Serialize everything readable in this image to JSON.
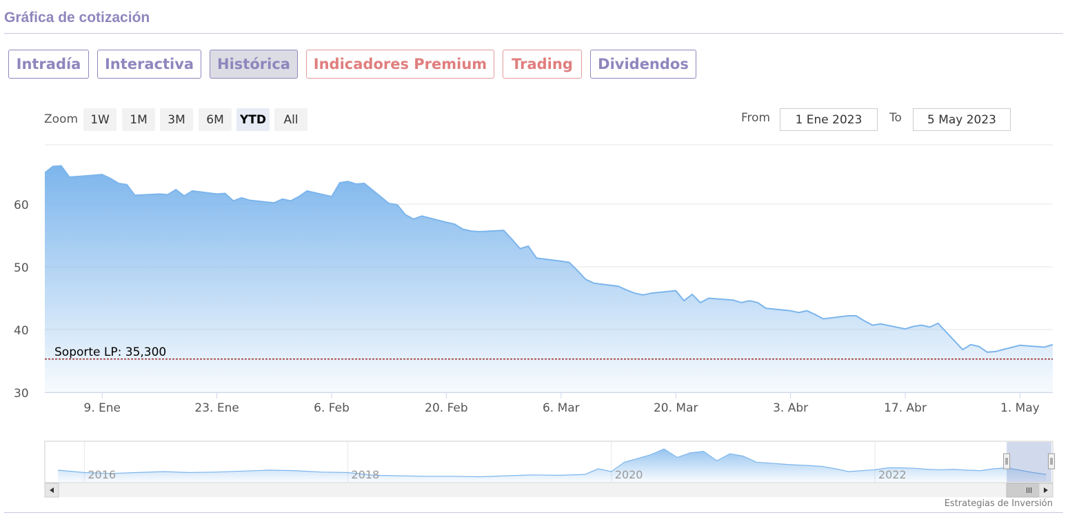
{
  "header": {
    "title": "Gráfica de cotización"
  },
  "tabs": [
    {
      "label": "Intradía",
      "style": "normal",
      "active": false
    },
    {
      "label": "Interactiva",
      "style": "normal",
      "active": false
    },
    {
      "label": "Histórica",
      "style": "normal",
      "active": true
    },
    {
      "label": "Indicadores Premium",
      "style": "premium",
      "active": false
    },
    {
      "label": "Trading",
      "style": "premium",
      "active": false
    },
    {
      "label": "Dividendos",
      "style": "normal",
      "active": false
    }
  ],
  "zoom": {
    "label": "Zoom",
    "buttons": [
      "1W",
      "1M",
      "3M",
      "6M",
      "YTD",
      "All"
    ],
    "active": "YTD"
  },
  "range": {
    "from_label": "From",
    "from_value": "1 Ene 2023",
    "to_label": "To",
    "to_value": "5 May 2023"
  },
  "colors": {
    "accent": "#8f86bd",
    "premium": "#e07e7e",
    "line": "#7cb5ec",
    "support_line": "#8b0000"
  },
  "chart_data": {
    "type": "area",
    "y_ticks": [
      "60",
      "50",
      "40",
      "30"
    ],
    "ylim": [
      30,
      70
    ],
    "x_ticks": [
      "9. Ene",
      "23. Ene",
      "6. Feb",
      "20. Feb",
      "6. Mar",
      "20. Mar",
      "3. Abr",
      "17. Abr",
      "1. May"
    ],
    "x_tick_dates": [
      "2023-01-09",
      "2023-01-23",
      "2023-02-06",
      "2023-02-20",
      "2023-03-06",
      "2023-03-20",
      "2023-04-03",
      "2023-04-17",
      "2023-05-01"
    ],
    "x_range": [
      "2023-01-02",
      "2023-05-05"
    ],
    "grid": true,
    "series": [
      {
        "x": [
          "2023-01-02",
          "2023-01-03",
          "2023-01-04",
          "2023-01-05",
          "2023-01-06",
          "2023-01-09",
          "2023-01-10",
          "2023-01-11",
          "2023-01-12",
          "2023-01-13",
          "2023-01-16",
          "2023-01-17",
          "2023-01-18",
          "2023-01-19",
          "2023-01-20",
          "2023-01-23",
          "2023-01-24",
          "2023-01-25",
          "2023-01-26",
          "2023-01-27",
          "2023-01-30",
          "2023-01-31",
          "2023-02-01",
          "2023-02-02",
          "2023-02-03",
          "2023-02-06",
          "2023-02-07",
          "2023-02-08",
          "2023-02-09",
          "2023-02-10",
          "2023-02-13",
          "2023-02-14",
          "2023-02-15",
          "2023-02-16",
          "2023-02-17",
          "2023-02-20",
          "2023-02-21",
          "2023-02-22",
          "2023-02-23",
          "2023-02-24",
          "2023-02-27",
          "2023-02-28",
          "2023-03-01",
          "2023-03-02",
          "2023-03-03",
          "2023-03-06",
          "2023-03-07",
          "2023-03-08",
          "2023-03-09",
          "2023-03-10",
          "2023-03-13",
          "2023-03-14",
          "2023-03-15",
          "2023-03-16",
          "2023-03-17",
          "2023-03-20",
          "2023-03-21",
          "2023-03-22",
          "2023-03-23",
          "2023-03-24",
          "2023-03-27",
          "2023-03-28",
          "2023-03-29",
          "2023-03-30",
          "2023-03-31",
          "2023-04-03",
          "2023-04-04",
          "2023-04-05",
          "2023-04-06",
          "2023-04-07",
          "2023-04-10",
          "2023-04-11",
          "2023-04-12",
          "2023-04-13",
          "2023-04-14",
          "2023-04-17",
          "2023-04-18",
          "2023-04-19",
          "2023-04-20",
          "2023-04-21",
          "2023-04-24",
          "2023-04-25",
          "2023-04-26",
          "2023-04-27",
          "2023-04-28",
          "2023-05-01",
          "2023-05-02",
          "2023-05-03",
          "2023-05-04",
          "2023-05-05"
        ],
        "values": [
          65.0,
          66.0,
          66.1,
          64.3,
          64.4,
          64.7,
          64.1,
          63.3,
          63.1,
          61.4,
          61.6,
          61.5,
          62.3,
          61.3,
          62.1,
          61.6,
          61.7,
          60.5,
          61.0,
          60.6,
          60.2,
          60.8,
          60.5,
          61.2,
          62.1,
          61.2,
          63.4,
          63.6,
          63.2,
          63.3,
          60.1,
          59.9,
          58.3,
          57.6,
          58.1,
          57.1,
          56.8,
          56.0,
          55.7,
          55.6,
          55.8,
          54.4,
          52.9,
          53.3,
          51.4,
          50.9,
          50.7,
          49.4,
          48.0,
          47.4,
          46.9,
          46.3,
          45.8,
          45.5,
          45.8,
          46.2,
          44.6,
          45.6,
          44.3,
          45.0,
          44.7,
          44.3,
          44.6,
          44.3,
          43.4,
          43.0,
          42.7,
          43.0,
          42.4,
          41.7,
          42.2,
          42.2,
          41.4,
          40.7,
          40.9,
          40.1,
          40.5,
          40.7,
          40.4,
          41.0,
          36.8,
          37.6,
          37.3,
          36.4,
          36.5,
          37.5,
          37.4,
          37.3,
          37.2,
          37.6
        ]
      }
    ],
    "annotations": [
      {
        "label": "Soporte LP: 35,300",
        "y": 35.3
      }
    ],
    "navigator": {
      "x_ticks": [
        "2016",
        "2018",
        "2020",
        "2022"
      ],
      "x_tick_years": [
        2016,
        2018,
        2020,
        2022
      ],
      "x_range": [
        2015.7,
        2023.35
      ],
      "y_range": [
        30,
        115
      ],
      "x": [
        2015.8,
        2016.0,
        2016.2,
        2016.4,
        2016.6,
        2016.8,
        2017.0,
        2017.2,
        2017.4,
        2017.6,
        2017.8,
        2018.0,
        2018.2,
        2018.4,
        2018.6,
        2018.8,
        2019.0,
        2019.2,
        2019.4,
        2019.6,
        2019.8,
        2019.9,
        2020.0,
        2020.1,
        2020.2,
        2020.3,
        2020.4,
        2020.5,
        2020.6,
        2020.7,
        2020.8,
        2020.9,
        2021.0,
        2021.1,
        2021.2,
        2021.3,
        2021.4,
        2021.5,
        2021.6,
        2021.7,
        2021.8,
        2021.9,
        2022.0,
        2022.1,
        2022.2,
        2022.3,
        2022.4,
        2022.5,
        2022.6,
        2022.7,
        2022.8,
        2022.9,
        2023.0,
        2023.1,
        2023.2,
        2023.3
      ],
      "values": [
        55,
        50,
        48,
        50,
        52,
        50,
        51,
        53,
        55,
        54,
        51,
        50,
        44,
        43,
        42,
        42,
        41,
        43,
        45,
        44,
        46,
        58,
        52,
        72,
        80,
        88,
        100,
        82,
        92,
        95,
        75,
        90,
        85,
        72,
        70,
        68,
        66,
        65,
        63,
        58,
        52,
        54,
        56,
        60,
        60,
        59,
        57,
        56,
        57,
        55,
        54,
        58,
        60,
        55,
        50,
        46
      ]
    }
  },
  "credit": "Estrategias de Inversión"
}
